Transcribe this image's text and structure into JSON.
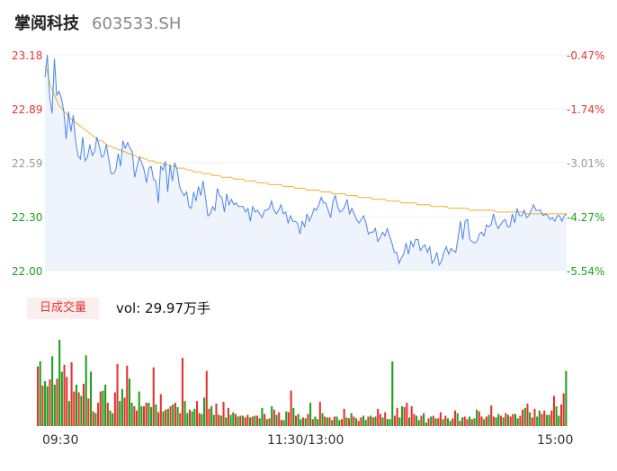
{
  "header": {
    "name": "掌阅科技",
    "code": "603533.SH"
  },
  "volume_panel": {
    "badge": "日成交量",
    "vol_label": "vol: 29.97万手"
  },
  "colors": {
    "up": "#e5342f",
    "down": "#1ea01e",
    "price_line": "#4a85e8",
    "avg_line": "#f2b025",
    "fill": "#eef3fc"
  },
  "chart_data": [
    {
      "type": "line",
      "title": "",
      "y_left_ticks": [
        "23.18",
        "22.89",
        "22.59",
        "22.30",
        "22.00"
      ],
      "y_right_ticks": [
        "-0.47%",
        "-1.74%",
        "-3.01%",
        "-4.27%",
        "-5.54%"
      ],
      "x_ticks": [
        "09:30",
        "11:30/13:00",
        "15:00"
      ],
      "ylim": [
        22.0,
        23.18
      ],
      "series": [
        {
          "key": "price",
          "values": [
            23.06,
            23.18,
            22.95,
            22.86,
            23.16,
            22.96,
            22.98,
            22.94,
            22.87,
            22.72,
            22.87,
            22.76,
            22.85,
            22.71,
            22.63,
            22.61,
            22.73,
            22.6,
            22.62,
            22.69,
            22.63,
            22.65,
            22.73,
            22.68,
            22.62,
            22.63,
            22.69,
            22.61,
            22.53,
            22.53,
            22.55,
            22.64,
            22.57,
            22.71,
            22.67,
            22.7,
            22.67,
            22.65,
            22.51,
            22.57,
            22.62,
            22.59,
            22.55,
            22.48,
            22.56,
            22.57,
            22.5,
            22.49,
            22.37,
            22.57,
            22.55,
            22.6,
            22.43,
            22.58,
            22.49,
            22.59,
            22.55,
            22.46,
            22.43,
            22.41,
            22.43,
            22.35,
            22.34,
            22.43,
            22.38,
            22.46,
            22.41,
            22.49,
            22.4,
            22.3,
            22.31,
            22.35,
            22.33,
            22.45,
            22.41,
            22.4,
            22.32,
            22.42,
            22.36,
            22.39,
            22.36,
            22.37,
            22.35,
            22.35,
            22.35,
            22.32,
            22.34,
            22.27,
            22.35,
            22.32,
            22.33,
            22.31,
            22.29,
            22.33,
            22.33,
            22.34,
            22.38,
            22.33,
            22.31,
            22.33,
            22.36,
            22.31,
            22.32,
            22.26,
            22.3,
            22.27,
            22.27,
            22.26,
            22.2,
            22.27,
            22.24,
            22.31,
            22.27,
            22.3,
            22.34,
            22.33,
            22.36,
            22.4,
            22.37,
            22.37,
            22.33,
            22.29,
            22.38,
            22.41,
            22.35,
            22.32,
            22.33,
            22.35,
            22.39,
            22.31,
            22.34,
            22.31,
            22.28,
            22.26,
            22.28,
            22.3,
            22.26,
            22.2,
            22.21,
            22.21,
            22.23,
            22.16,
            22.18,
            22.21,
            22.19,
            22.23,
            22.19,
            22.15,
            22.1,
            22.1,
            22.04,
            22.07,
            22.09,
            22.15,
            22.09,
            22.16,
            22.13,
            22.17,
            22.17,
            22.11,
            22.13,
            22.14,
            22.1,
            22.13,
            22.04,
            22.06,
            22.1,
            22.03,
            22.05,
            22.1,
            22.13,
            22.09,
            22.12,
            22.11,
            22.1,
            22.18,
            22.27,
            22.17,
            22.27,
            22.28,
            22.17,
            22.16,
            22.15,
            22.16,
            22.2,
            22.21,
            22.19,
            22.25,
            22.24,
            22.25,
            22.31,
            22.26,
            22.23,
            22.25,
            22.27,
            22.28,
            22.24,
            22.24,
            22.31,
            22.26,
            22.34,
            22.3,
            22.3,
            22.33,
            22.29,
            22.3,
            22.33,
            22.36,
            22.33,
            22.33,
            22.33,
            22.3,
            22.31,
            22.3,
            22.28,
            22.29,
            22.27,
            22.3,
            22.3,
            22.27,
            22.3,
            22.31
          ]
        },
        {
          "key": "avg",
          "values": [
            23.12,
            23.09,
            23.03,
            22.99,
            22.96,
            22.93,
            22.9,
            22.89,
            22.87,
            22.86,
            22.84,
            22.83,
            22.82,
            22.81,
            22.8,
            22.79,
            22.78,
            22.77,
            22.76,
            22.75,
            22.74,
            22.73,
            22.72,
            22.71,
            22.71,
            22.7,
            22.69,
            22.68,
            22.68,
            22.67,
            22.67,
            22.66,
            22.66,
            22.65,
            22.65,
            22.64,
            22.64,
            22.63,
            22.63,
            22.62,
            22.62,
            22.62,
            22.61,
            22.61,
            22.6,
            22.6,
            22.6,
            22.59,
            22.59,
            22.59,
            22.58,
            22.58,
            22.58,
            22.57,
            22.57,
            22.57,
            22.56,
            22.56,
            22.56,
            22.56,
            22.55,
            22.55,
            22.55,
            22.54,
            22.54,
            22.54,
            22.54,
            22.53,
            22.53,
            22.53,
            22.53,
            22.52,
            22.52,
            22.52,
            22.52,
            22.51,
            22.51,
            22.51,
            22.51,
            22.51,
            22.5,
            22.5,
            22.5,
            22.5,
            22.5,
            22.49,
            22.49,
            22.49,
            22.49,
            22.49,
            22.48,
            22.48,
            22.48,
            22.48,
            22.48,
            22.47,
            22.47,
            22.47,
            22.47,
            22.47,
            22.47,
            22.46,
            22.46,
            22.46,
            22.46,
            22.46,
            22.45,
            22.45,
            22.45,
            22.45,
            22.45,
            22.44,
            22.44,
            22.44,
            22.44,
            22.44,
            22.44,
            22.43,
            22.43,
            22.43,
            22.43,
            22.43,
            22.42,
            22.42,
            22.42,
            22.42,
            22.42,
            22.42,
            22.41,
            22.41,
            22.41,
            22.41,
            22.41,
            22.4,
            22.4,
            22.4,
            22.4,
            22.4,
            22.4,
            22.39,
            22.39,
            22.39,
            22.39,
            22.39,
            22.39,
            22.38,
            22.38,
            22.38,
            22.38,
            22.38,
            22.38,
            22.37,
            22.37,
            22.37,
            22.37,
            22.37,
            22.37,
            22.37,
            22.36,
            22.36,
            22.36,
            22.36,
            22.36,
            22.36,
            22.35,
            22.35,
            22.35,
            22.35,
            22.35,
            22.35,
            22.35,
            22.34,
            22.34,
            22.34,
            22.34,
            22.34,
            22.34,
            22.34,
            22.34,
            22.34,
            22.33,
            22.33,
            22.33,
            22.33,
            22.33,
            22.33,
            22.33,
            22.33,
            22.33,
            22.33,
            22.33,
            22.32,
            22.32,
            22.32,
            22.32,
            22.32,
            22.32,
            22.32,
            22.32,
            22.32,
            22.32,
            22.32,
            22.32,
            22.32,
            22.31,
            22.31,
            22.31,
            22.31,
            22.31,
            22.31,
            22.31,
            22.31,
            22.31,
            22.31,
            22.31,
            22.31,
            22.31,
            22.31,
            22.31,
            22.31,
            22.31,
            22.31
          ]
        }
      ]
    },
    {
      "type": "bar",
      "title": "",
      "ylim": [
        0,
        100
      ],
      "values": [
        69,
        75,
        47,
        52,
        46,
        54,
        81,
        48,
        55,
        100,
        63,
        71,
        57,
        29,
        74,
        40,
        48,
        39,
        35,
        49,
        82,
        32,
        63,
        17,
        15,
        27,
        40,
        41,
        48,
        27,
        18,
        15,
        39,
        72,
        29,
        43,
        33,
        70,
        55,
        27,
        23,
        18,
        40,
        23,
        23,
        27,
        27,
        22,
        68,
        25,
        16,
        37,
        17,
        19,
        20,
        23,
        25,
        27,
        22,
        15,
        79,
        29,
        15,
        19,
        17,
        20,
        29,
        15,
        14,
        33,
        64,
        20,
        23,
        13,
        26,
        13,
        12,
        28,
        10,
        21,
        13,
        16,
        14,
        11,
        12,
        12,
        10,
        13,
        10,
        11,
        12,
        12,
        9,
        21,
        14,
        8,
        9,
        23,
        19,
        13,
        16,
        7,
        7,
        17,
        16,
        41,
        21,
        12,
        14,
        8,
        10,
        9,
        14,
        27,
        8,
        11,
        8,
        28,
        15,
        11,
        10,
        10,
        7,
        11,
        11,
        7,
        8,
        20,
        10,
        9,
        15,
        11,
        9,
        6,
        10,
        12,
        7,
        11,
        12,
        10,
        11,
        20,
        14,
        10,
        16,
        8,
        8,
        75,
        12,
        21,
        10,
        23,
        22,
        27,
        10,
        23,
        14,
        12,
        7,
        12,
        15,
        4,
        9,
        11,
        12,
        9,
        9,
        16,
        8,
        12,
        9,
        6,
        9,
        18,
        15,
        6,
        10,
        11,
        8,
        11,
        8,
        9,
        19,
        17,
        11,
        8,
        11,
        13,
        24,
        11,
        10,
        14,
        12,
        10,
        15,
        13,
        11,
        14,
        14,
        9,
        12,
        19,
        21,
        26,
        16,
        10,
        20,
        11,
        18,
        14,
        18,
        13,
        13,
        18,
        35,
        23,
        12,
        25,
        38,
        64
      ],
      "colors": [
        "u",
        "d",
        "u",
        "d",
        "d",
        "u",
        "d",
        "d",
        "u",
        "d",
        "d",
        "u",
        "u",
        "d",
        "u",
        "u",
        "d",
        "u",
        "d",
        "u",
        "d",
        "u",
        "d",
        "u",
        "d",
        "u",
        "u",
        "d",
        "d",
        "u",
        "d",
        "d",
        "u",
        "u",
        "d",
        "d",
        "u",
        "u",
        "d",
        "d",
        "u",
        "u",
        "d",
        "d",
        "u",
        "u",
        "d",
        "d",
        "u",
        "d",
        "u",
        "u",
        "d",
        "u",
        "d",
        "u",
        "d",
        "u",
        "d",
        "u",
        "u",
        "d",
        "d",
        "u",
        "d",
        "d",
        "u",
        "u",
        "d",
        "d",
        "u",
        "u",
        "d",
        "d",
        "u",
        "u",
        "d",
        "u",
        "d",
        "u",
        "d",
        "d",
        "u",
        "d",
        "u",
        "d",
        "u",
        "u",
        "d",
        "u",
        "d",
        "u",
        "d",
        "d",
        "u",
        "d",
        "u",
        "d",
        "u",
        "d",
        "u",
        "u",
        "d",
        "d",
        "u",
        "u",
        "d",
        "u",
        "d",
        "d",
        "u",
        "d",
        "u",
        "d",
        "u",
        "d",
        "d",
        "u",
        "d",
        "u",
        "d",
        "u",
        "d",
        "u",
        "d",
        "d",
        "u",
        "u",
        "d",
        "u",
        "d",
        "u",
        "d",
        "u",
        "u",
        "d",
        "d",
        "u",
        "d",
        "u",
        "d",
        "u",
        "u",
        "d",
        "u",
        "d",
        "d",
        "d",
        "u",
        "u",
        "d",
        "d",
        "u",
        "u",
        "d",
        "u",
        "u",
        "d",
        "d",
        "u",
        "d",
        "d",
        "u",
        "d",
        "u",
        "d",
        "u",
        "u",
        "d",
        "u",
        "d",
        "d",
        "u",
        "u",
        "d",
        "u",
        "d",
        "u",
        "u",
        "d",
        "u",
        "d",
        "d",
        "u",
        "u",
        "d",
        "u",
        "d",
        "u",
        "u",
        "d",
        "d",
        "u",
        "d",
        "u",
        "d",
        "u",
        "u",
        "d",
        "d",
        "u",
        "u",
        "d",
        "u",
        "d",
        "u",
        "u",
        "d",
        "d",
        "u",
        "u",
        "d",
        "d",
        "u",
        "u",
        "d",
        "d",
        "u",
        "u",
        "d",
        "u",
        "d",
        "d",
        "u"
      ]
    }
  ]
}
